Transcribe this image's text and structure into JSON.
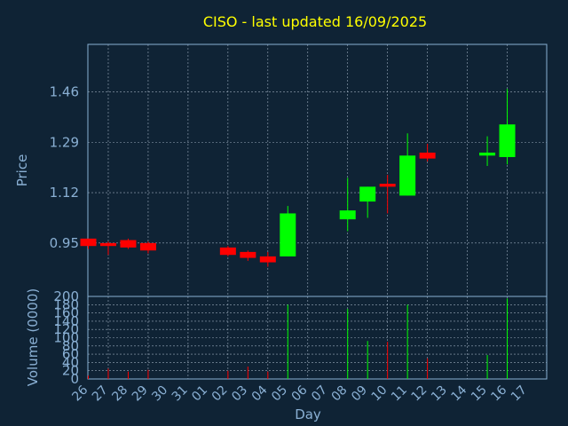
{
  "chart_data": {
    "type": "candlestick",
    "title": "CISO - last updated 16/09/2025",
    "xlabel": "Day",
    "ylabel": "Price",
    "volume_label": "Volume (0000)",
    "x_ticks": [
      "26",
      "27",
      "28",
      "29",
      "30",
      "31",
      "01",
      "02",
      "03",
      "04",
      "05",
      "06",
      "07",
      "08",
      "09",
      "10",
      "11",
      "12",
      "13",
      "14",
      "15",
      "16",
      "17"
    ],
    "y_ticks": [
      "0.95",
      "1.12",
      "1.29",
      "1.46"
    ],
    "y_tick_values": [
      0.95,
      1.12,
      1.29,
      1.46
    ],
    "volume_ticks": [
      "0",
      "20",
      "40",
      "60",
      "80",
      "100",
      "120",
      "140",
      "160",
      "180",
      "200"
    ],
    "ylim": [
      0.77,
      1.62
    ],
    "volume_ylim": [
      0,
      200
    ],
    "grid": true,
    "colors": {
      "up": "#00ff00",
      "down": "#ff0000",
      "background": "#0f2335",
      "title": "#ffff00",
      "axis": "#8ab0d4"
    },
    "candles": [
      {
        "x": 26,
        "open": 0.965,
        "high": 0.965,
        "low": 0.93,
        "close": 0.94
      },
      {
        "x": 27,
        "open": 0.95,
        "high": 0.955,
        "low": 0.91,
        "close": 0.94
      },
      {
        "x": 28,
        "open": 0.96,
        "high": 0.965,
        "low": 0.93,
        "close": 0.935
      },
      {
        "x": 29,
        "open": 0.95,
        "high": 0.955,
        "low": 0.915,
        "close": 0.925
      },
      {
        "x": 2,
        "open": 0.935,
        "high": 0.94,
        "low": 0.905,
        "close": 0.91
      },
      {
        "x": 3,
        "open": 0.92,
        "high": 0.925,
        "low": 0.89,
        "close": 0.9
      },
      {
        "x": 4,
        "open": 0.905,
        "high": 0.92,
        "low": 0.87,
        "close": 0.885
      },
      {
        "x": 5,
        "open": 0.905,
        "high": 1.075,
        "low": 0.905,
        "close": 1.05
      },
      {
        "x": 8,
        "open": 1.03,
        "high": 1.17,
        "low": 0.99,
        "close": 1.06
      },
      {
        "x": 9,
        "open": 1.09,
        "high": 1.14,
        "low": 1.035,
        "close": 1.14
      },
      {
        "x": 10,
        "open": 1.15,
        "high": 1.18,
        "low": 1.05,
        "close": 1.14
      },
      {
        "x": 11,
        "open": 1.11,
        "high": 1.32,
        "low": 1.11,
        "close": 1.245
      },
      {
        "x": 12,
        "open": 1.255,
        "high": 1.285,
        "low": 1.225,
        "close": 1.235
      },
      {
        "x": 15,
        "open": 1.245,
        "high": 1.31,
        "low": 1.21,
        "close": 1.255
      },
      {
        "x": 16,
        "open": 1.24,
        "high": 1.47,
        "low": 1.215,
        "close": 1.35
      }
    ],
    "volume": [
      {
        "x": 26,
        "value": 8,
        "dir": "down"
      },
      {
        "x": 27,
        "value": 25,
        "dir": "down"
      },
      {
        "x": 28,
        "value": 18,
        "dir": "down"
      },
      {
        "x": 29,
        "value": 22,
        "dir": "down"
      },
      {
        "x": 2,
        "value": 20,
        "dir": "down"
      },
      {
        "x": 3,
        "value": 30,
        "dir": "down"
      },
      {
        "x": 4,
        "value": 18,
        "dir": "down"
      },
      {
        "x": 5,
        "value": 180,
        "dir": "up"
      },
      {
        "x": 8,
        "value": 170,
        "dir": "up"
      },
      {
        "x": 9,
        "value": 92,
        "dir": "up"
      },
      {
        "x": 10,
        "value": 90,
        "dir": "down"
      },
      {
        "x": 11,
        "value": 180,
        "dir": "up"
      },
      {
        "x": 12,
        "value": 50,
        "dir": "down"
      },
      {
        "x": 15,
        "value": 58,
        "dir": "up"
      },
      {
        "x": 16,
        "value": 195,
        "dir": "up"
      }
    ]
  }
}
